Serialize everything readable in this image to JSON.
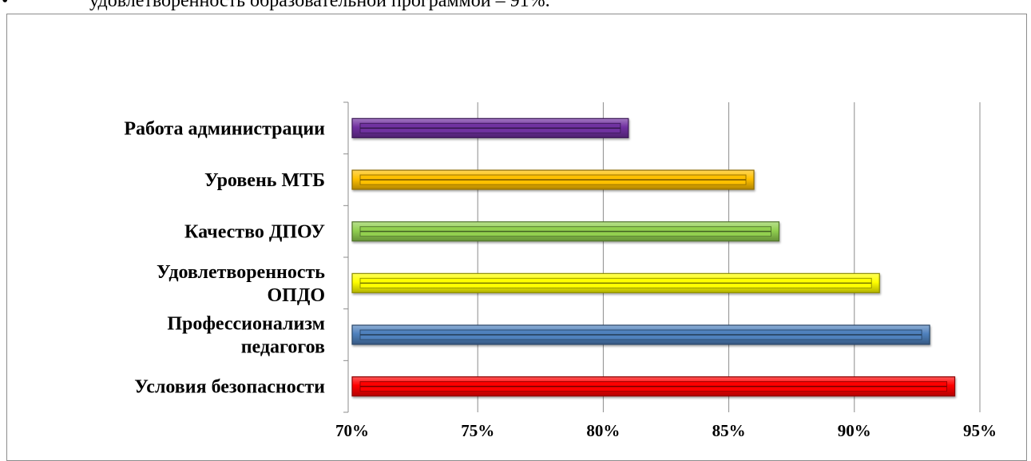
{
  "page": {
    "top_bullet": "•",
    "top_text": "удовлетворенность образовательной программой – 91%."
  },
  "chart_data": {
    "type": "bar",
    "orientation": "horizontal",
    "categories": [
      "Работа администрации",
      "Уровень МТБ",
      "Качество ДПОУ",
      "Удовлетворенность ОПДО",
      "Профессионализм педагогов",
      "Условия безопасности"
    ],
    "category_lines": [
      [
        "Работа администрации"
      ],
      [
        "Уровень МТБ"
      ],
      [
        "Качество ДПОУ"
      ],
      [
        "Удовлетворенность",
        "ОПДО"
      ],
      [
        "Профессионализм",
        "педагогов"
      ],
      [
        "Условия безопасности"
      ]
    ],
    "values": [
      81,
      86,
      87,
      91,
      93,
      94
    ],
    "bar_colors": [
      "#7030a0",
      "#ffc000",
      "#92d050",
      "#ffff00",
      "#4f81bd",
      "#ff0000"
    ],
    "xlim": [
      70,
      95
    ],
    "xticks": [
      "70%",
      "75%",
      "80%",
      "85%",
      "90%",
      "95%"
    ],
    "value_format": "percent",
    "grid": "vertical",
    "legend": "none",
    "title": "",
    "xlabel": "",
    "ylabel": ""
  }
}
